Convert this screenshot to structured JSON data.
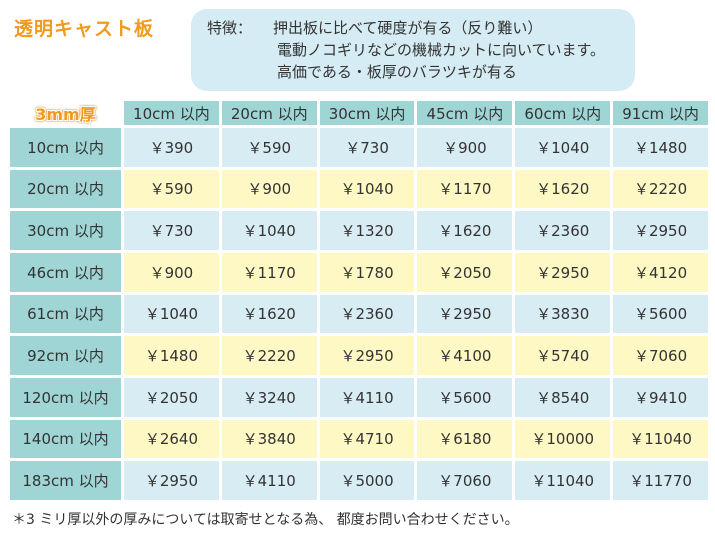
{
  "title": "透明キャスト板",
  "features": {
    "label": "特徴：",
    "line1": "押出板に比べて硬度が有る（反り難い）",
    "line2": "電動ノコギリなどの機械カットに向いています。",
    "line3": "高価である・板厚のバラツキが有る"
  },
  "table": {
    "corner_label": "3mm厚",
    "columns": [
      "10cm 以内",
      "20cm 以内",
      "30cm 以内",
      "45cm 以内",
      "60cm 以内",
      "91cm 以内"
    ],
    "rows": [
      {
        "label": "10cm 以内",
        "prices": [
          "￥390",
          "￥590",
          "￥730",
          "￥900",
          "￥1040",
          "￥1480"
        ]
      },
      {
        "label": "20cm 以内",
        "prices": [
          "￥590",
          "￥900",
          "￥1040",
          "￥1170",
          "￥1620",
          "￥2220"
        ]
      },
      {
        "label": "30cm 以内",
        "prices": [
          "￥730",
          "￥1040",
          "￥1320",
          "￥1620",
          "￥2360",
          "￥2950"
        ]
      },
      {
        "label": "46cm 以内",
        "prices": [
          "￥900",
          "￥1170",
          "￥1780",
          "￥2050",
          "￥2950",
          "￥4120"
        ]
      },
      {
        "label": "61cm 以内",
        "prices": [
          "￥1040",
          "￥1620",
          "￥2360",
          "￥2950",
          "￥3830",
          "￥5600"
        ]
      },
      {
        "label": "92cm 以内",
        "prices": [
          "￥1480",
          "￥2220",
          "￥2950",
          "￥4100",
          "￥5740",
          "￥7060"
        ]
      },
      {
        "label": "120cm 以内",
        "prices": [
          "￥2050",
          "￥3240",
          "￥4110",
          "￥5600",
          "￥8540",
          "￥9410"
        ]
      },
      {
        "label": "140cm 以内",
        "prices": [
          "￥2640",
          "￥3840",
          "￥4710",
          "￥6180",
          "￥10000",
          "￥11040"
        ]
      },
      {
        "label": "183cm 以内",
        "prices": [
          "￥2950",
          "￥4110",
          "￥5000",
          "￥7060",
          "￥11040",
          "￥11770"
        ]
      }
    ]
  },
  "note": "＊3 ミリ厚以外の厚みについては取寄せとなる為、 都度お問い合わせください。",
  "colors": {
    "title_orange": "#f39a1c",
    "header_teal": "#9fd5d4",
    "row_blue": "#d8ecf3",
    "row_yellow": "#fdf8c4",
    "features_bg": "#d5ecf4"
  }
}
